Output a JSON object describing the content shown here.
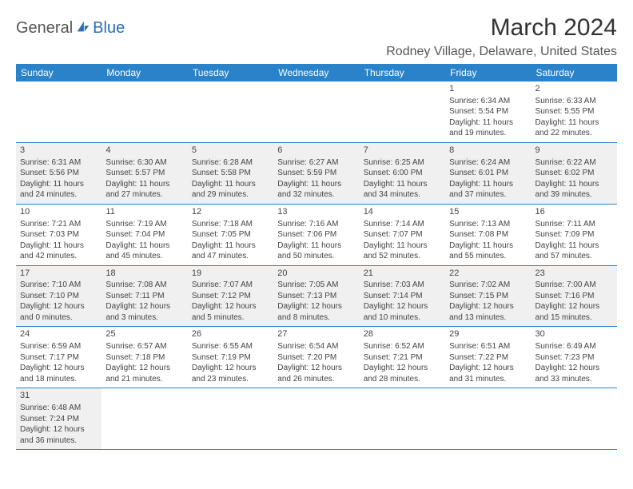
{
  "brand": {
    "general": "General",
    "blue": "Blue"
  },
  "title": "March 2024",
  "location": "Rodney Village, Delaware, United States",
  "colors": {
    "header_bg": "#2a82c9",
    "header_fg": "#ffffff",
    "row_border": "#2a82c9",
    "alt_row_bg": "#f0f0f0",
    "body_text": "#444444",
    "brand_blue": "#2a6db5"
  },
  "weekdays": [
    "Sunday",
    "Monday",
    "Tuesday",
    "Wednesday",
    "Thursday",
    "Friday",
    "Saturday"
  ],
  "weeks": [
    [
      null,
      null,
      null,
      null,
      null,
      {
        "day": "1",
        "sunrise": "Sunrise: 6:34 AM",
        "sunset": "Sunset: 5:54 PM",
        "daylight": "Daylight: 11 hours and 19 minutes."
      },
      {
        "day": "2",
        "sunrise": "Sunrise: 6:33 AM",
        "sunset": "Sunset: 5:55 PM",
        "daylight": "Daylight: 11 hours and 22 minutes."
      }
    ],
    [
      {
        "day": "3",
        "sunrise": "Sunrise: 6:31 AM",
        "sunset": "Sunset: 5:56 PM",
        "daylight": "Daylight: 11 hours and 24 minutes."
      },
      {
        "day": "4",
        "sunrise": "Sunrise: 6:30 AM",
        "sunset": "Sunset: 5:57 PM",
        "daylight": "Daylight: 11 hours and 27 minutes."
      },
      {
        "day": "5",
        "sunrise": "Sunrise: 6:28 AM",
        "sunset": "Sunset: 5:58 PM",
        "daylight": "Daylight: 11 hours and 29 minutes."
      },
      {
        "day": "6",
        "sunrise": "Sunrise: 6:27 AM",
        "sunset": "Sunset: 5:59 PM",
        "daylight": "Daylight: 11 hours and 32 minutes."
      },
      {
        "day": "7",
        "sunrise": "Sunrise: 6:25 AM",
        "sunset": "Sunset: 6:00 PM",
        "daylight": "Daylight: 11 hours and 34 minutes."
      },
      {
        "day": "8",
        "sunrise": "Sunrise: 6:24 AM",
        "sunset": "Sunset: 6:01 PM",
        "daylight": "Daylight: 11 hours and 37 minutes."
      },
      {
        "day": "9",
        "sunrise": "Sunrise: 6:22 AM",
        "sunset": "Sunset: 6:02 PM",
        "daylight": "Daylight: 11 hours and 39 minutes."
      }
    ],
    [
      {
        "day": "10",
        "sunrise": "Sunrise: 7:21 AM",
        "sunset": "Sunset: 7:03 PM",
        "daylight": "Daylight: 11 hours and 42 minutes."
      },
      {
        "day": "11",
        "sunrise": "Sunrise: 7:19 AM",
        "sunset": "Sunset: 7:04 PM",
        "daylight": "Daylight: 11 hours and 45 minutes."
      },
      {
        "day": "12",
        "sunrise": "Sunrise: 7:18 AM",
        "sunset": "Sunset: 7:05 PM",
        "daylight": "Daylight: 11 hours and 47 minutes."
      },
      {
        "day": "13",
        "sunrise": "Sunrise: 7:16 AM",
        "sunset": "Sunset: 7:06 PM",
        "daylight": "Daylight: 11 hours and 50 minutes."
      },
      {
        "day": "14",
        "sunrise": "Sunrise: 7:14 AM",
        "sunset": "Sunset: 7:07 PM",
        "daylight": "Daylight: 11 hours and 52 minutes."
      },
      {
        "day": "15",
        "sunrise": "Sunrise: 7:13 AM",
        "sunset": "Sunset: 7:08 PM",
        "daylight": "Daylight: 11 hours and 55 minutes."
      },
      {
        "day": "16",
        "sunrise": "Sunrise: 7:11 AM",
        "sunset": "Sunset: 7:09 PM",
        "daylight": "Daylight: 11 hours and 57 minutes."
      }
    ],
    [
      {
        "day": "17",
        "sunrise": "Sunrise: 7:10 AM",
        "sunset": "Sunset: 7:10 PM",
        "daylight": "Daylight: 12 hours and 0 minutes."
      },
      {
        "day": "18",
        "sunrise": "Sunrise: 7:08 AM",
        "sunset": "Sunset: 7:11 PM",
        "daylight": "Daylight: 12 hours and 3 minutes."
      },
      {
        "day": "19",
        "sunrise": "Sunrise: 7:07 AM",
        "sunset": "Sunset: 7:12 PM",
        "daylight": "Daylight: 12 hours and 5 minutes."
      },
      {
        "day": "20",
        "sunrise": "Sunrise: 7:05 AM",
        "sunset": "Sunset: 7:13 PM",
        "daylight": "Daylight: 12 hours and 8 minutes."
      },
      {
        "day": "21",
        "sunrise": "Sunrise: 7:03 AM",
        "sunset": "Sunset: 7:14 PM",
        "daylight": "Daylight: 12 hours and 10 minutes."
      },
      {
        "day": "22",
        "sunrise": "Sunrise: 7:02 AM",
        "sunset": "Sunset: 7:15 PM",
        "daylight": "Daylight: 12 hours and 13 minutes."
      },
      {
        "day": "23",
        "sunrise": "Sunrise: 7:00 AM",
        "sunset": "Sunset: 7:16 PM",
        "daylight": "Daylight: 12 hours and 15 minutes."
      }
    ],
    [
      {
        "day": "24",
        "sunrise": "Sunrise: 6:59 AM",
        "sunset": "Sunset: 7:17 PM",
        "daylight": "Daylight: 12 hours and 18 minutes."
      },
      {
        "day": "25",
        "sunrise": "Sunrise: 6:57 AM",
        "sunset": "Sunset: 7:18 PM",
        "daylight": "Daylight: 12 hours and 21 minutes."
      },
      {
        "day": "26",
        "sunrise": "Sunrise: 6:55 AM",
        "sunset": "Sunset: 7:19 PM",
        "daylight": "Daylight: 12 hours and 23 minutes."
      },
      {
        "day": "27",
        "sunrise": "Sunrise: 6:54 AM",
        "sunset": "Sunset: 7:20 PM",
        "daylight": "Daylight: 12 hours and 26 minutes."
      },
      {
        "day": "28",
        "sunrise": "Sunrise: 6:52 AM",
        "sunset": "Sunset: 7:21 PM",
        "daylight": "Daylight: 12 hours and 28 minutes."
      },
      {
        "day": "29",
        "sunrise": "Sunrise: 6:51 AM",
        "sunset": "Sunset: 7:22 PM",
        "daylight": "Daylight: 12 hours and 31 minutes."
      },
      {
        "day": "30",
        "sunrise": "Sunrise: 6:49 AM",
        "sunset": "Sunset: 7:23 PM",
        "daylight": "Daylight: 12 hours and 33 minutes."
      }
    ],
    [
      {
        "day": "31",
        "sunrise": "Sunrise: 6:48 AM",
        "sunset": "Sunset: 7:24 PM",
        "daylight": "Daylight: 12 hours and 36 minutes."
      },
      null,
      null,
      null,
      null,
      null,
      null
    ]
  ]
}
